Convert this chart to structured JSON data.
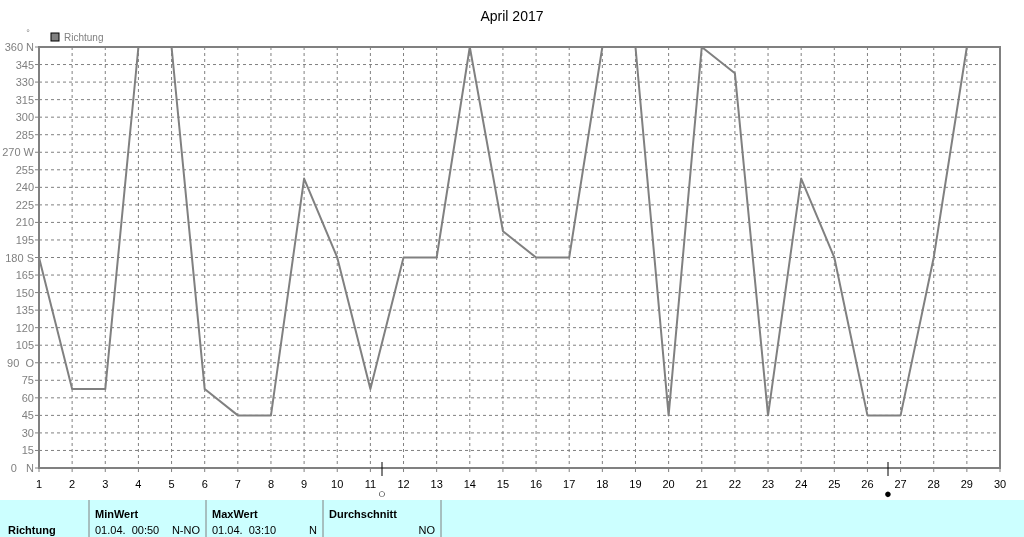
{
  "chart_data": {
    "type": "line",
    "title": "April 2017",
    "ylabel": "°",
    "x": [
      1,
      2,
      3,
      4,
      5,
      6,
      7,
      8,
      9,
      10,
      11,
      12,
      13,
      14,
      15,
      16,
      17,
      18,
      19,
      20,
      21,
      22,
      23,
      24,
      25,
      26,
      27,
      28,
      29
    ],
    "series": [
      {
        "name": "Richtung",
        "color": "#808080",
        "values": [
          180,
          67.5,
          67.5,
          360,
          360,
          67.5,
          45,
          45,
          247.5,
          180,
          67.5,
          180,
          180,
          360,
          202.5,
          180,
          180,
          360,
          360,
          45,
          360,
          337.5,
          45,
          247.5,
          180,
          45,
          45,
          180,
          360
        ]
      }
    ],
    "xlim": [
      1,
      30
    ],
    "xticks": [
      1,
      2,
      3,
      4,
      5,
      6,
      7,
      8,
      9,
      10,
      11,
      12,
      13,
      14,
      15,
      16,
      17,
      18,
      19,
      20,
      21,
      22,
      23,
      24,
      25,
      26,
      27,
      28,
      29,
      30
    ],
    "ylim": [
      0,
      360
    ],
    "yticks": [
      {
        "value": 0,
        "label": "0   N"
      },
      15,
      30,
      45,
      60,
      75,
      {
        "value": 90,
        "label": "90  O"
      },
      105,
      120,
      135,
      150,
      165,
      {
        "value": 180,
        "label": "180 S"
      },
      195,
      210,
      225,
      240,
      255,
      {
        "value": 270,
        "label": "270 W"
      },
      285,
      300,
      315,
      330,
      345,
      {
        "value": 360,
        "label": "360 N"
      }
    ],
    "annotations": [
      "○",
      "●",
      "Richtung",
      "MinWert",
      "01.04.  00:50",
      "N-NO",
      "MaxWert",
      "01.04.  03:10",
      "N",
      "Durchschnitt",
      "NO"
    ],
    "grid": true,
    "legend": "top left",
    "marker": "none",
    "line_style": "solid"
  }
}
